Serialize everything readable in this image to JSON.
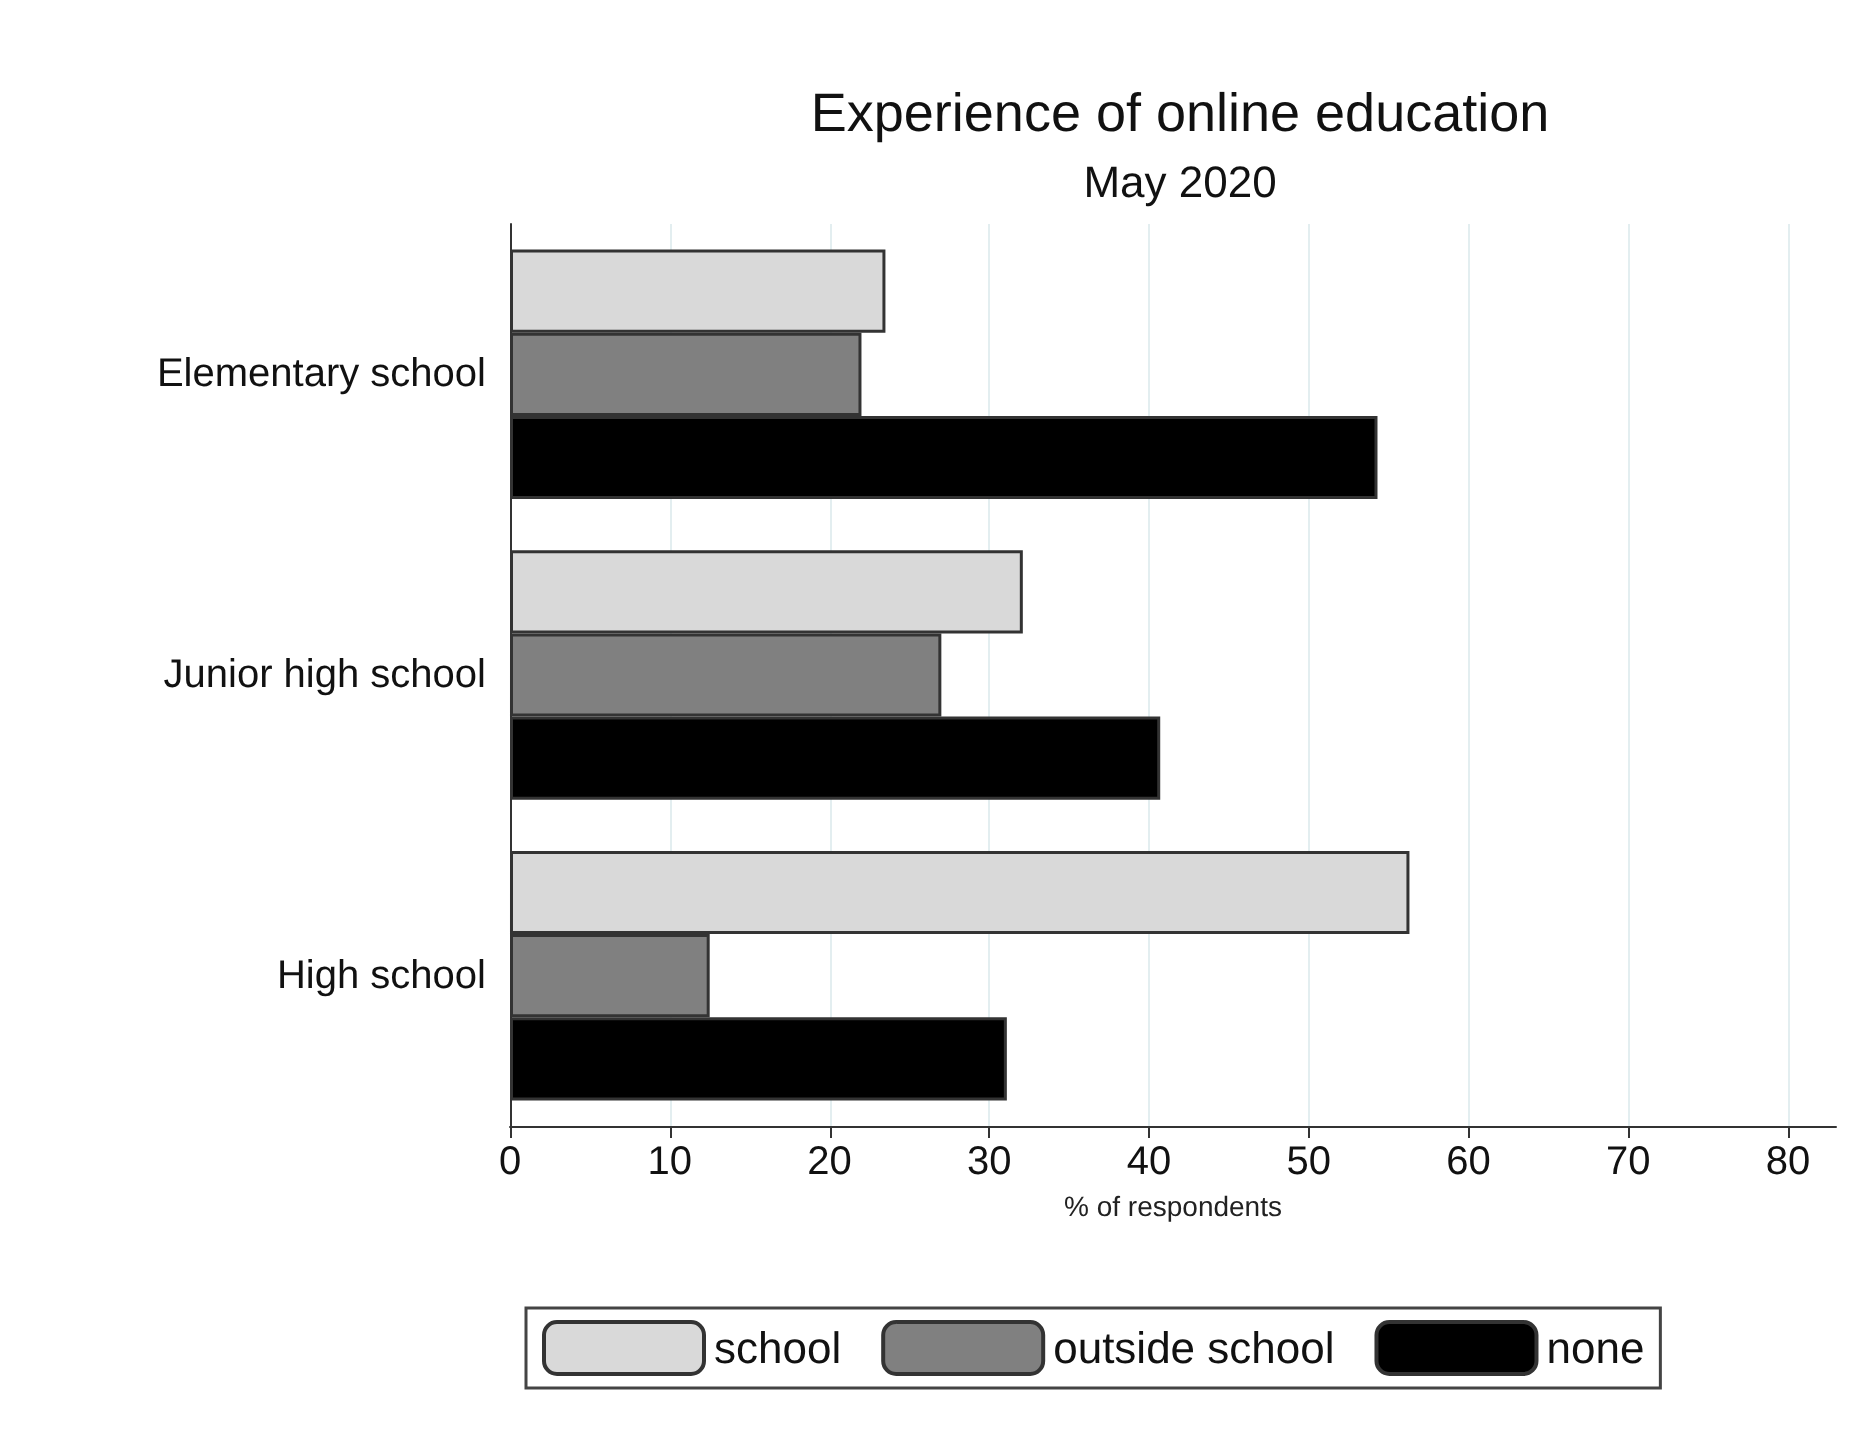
{
  "chart_data": {
    "type": "bar",
    "orientation": "horizontal",
    "title": "Experience of online education",
    "subtitle": "May 2020",
    "xlabel": "% of respondents",
    "categories": [
      "Elementary school",
      "Junior high school",
      "High school"
    ],
    "series": [
      {
        "name": "school",
        "color": "#d9d9d9",
        "values": [
          23.5,
          32.1,
          56.3
        ]
      },
      {
        "name": "outside school",
        "color": "#808080",
        "values": [
          22.0,
          27.0,
          12.5
        ]
      },
      {
        "name": "none",
        "color": "#000000",
        "values": [
          54.3,
          40.7,
          31.1
        ]
      }
    ],
    "xlim": [
      0,
      83
    ],
    "xticks": [
      0,
      10,
      20,
      30,
      40,
      50,
      60,
      70,
      80
    ],
    "grid": "x",
    "legend": "bottom"
  }
}
